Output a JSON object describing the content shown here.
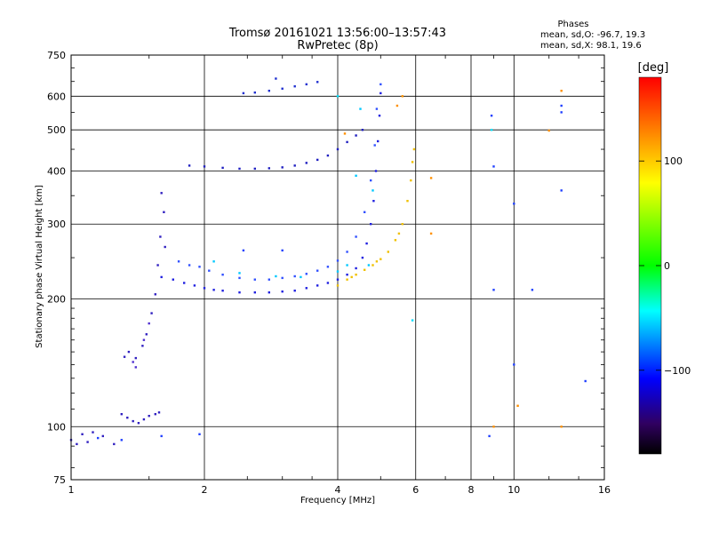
{
  "header": {
    "title": "Tromsø 20161021 13:56:00–13:57:43",
    "subtitle": "RwPretec (8p)"
  },
  "phase_box": {
    "heading": "Phases",
    "line_o": "mean, sd,O: -96.7, 19.3",
    "line_x": "mean, sd,X:  98.1, 19.6"
  },
  "colorbar": {
    "unit_label": "[deg]",
    "ticks": [
      {
        "value": 100,
        "label": "100"
      },
      {
        "value": 0,
        "label": "0"
      },
      {
        "value": -100,
        "label": "−100"
      }
    ],
    "range": [
      -180,
      180
    ],
    "colors": [
      "#ff0000",
      "#ff8000",
      "#ffff00",
      "#00ff00",
      "#00ffff",
      "#0000ff",
      "#300060",
      "#000000"
    ]
  },
  "chart_data": {
    "type": "scatter",
    "title": "Tromsø 20161021 13:56:00–13:57:43",
    "subtitle": "RwPretec (8p)",
    "xlabel": "Frequency [MHz]",
    "ylabel": "Stationary phase Virtual Height [km]",
    "x_scale": "log",
    "y_scale": "log",
    "xlim": [
      1,
      16
    ],
    "ylim": [
      75,
      750
    ],
    "x_ticks": [
      {
        "v": 1,
        "l": "1"
      },
      {
        "v": 2,
        "l": "2"
      },
      {
        "v": 4,
        "l": "4"
      },
      {
        "v": 6,
        "l": "6"
      },
      {
        "v": 8,
        "l": "8"
      },
      {
        "v": 10,
        "l": "10"
      },
      {
        "v": 16,
        "l": "16"
      }
    ],
    "y_ticks": [
      {
        "v": 75,
        "l": "75"
      },
      {
        "v": 100,
        "l": "100"
      },
      {
        "v": 200,
        "l": "200"
      },
      {
        "v": 300,
        "l": "300"
      },
      {
        "v": 400,
        "l": "400"
      },
      {
        "v": 500,
        "l": "500"
      },
      {
        "v": 600,
        "l": "600"
      },
      {
        "v": 750,
        "l": "750"
      }
    ],
    "grid": true,
    "series": [
      {
        "color": "#3020c0",
        "points": [
          [
            1.0,
            93
          ],
          [
            1.03,
            91
          ],
          [
            1.06,
            96
          ],
          [
            1.09,
            92
          ],
          [
            1.12,
            97
          ],
          [
            1.18,
            95
          ],
          [
            1.25,
            91
          ],
          [
            1.3,
            107
          ],
          [
            1.34,
            105
          ],
          [
            1.38,
            103
          ],
          [
            1.42,
            102
          ],
          [
            1.46,
            104
          ],
          [
            1.5,
            106
          ],
          [
            1.55,
            107
          ],
          [
            1.58,
            108
          ],
          [
            1.32,
            146
          ],
          [
            1.35,
            150
          ],
          [
            1.4,
            145
          ],
          [
            1.45,
            155
          ],
          [
            1.48,
            165
          ],
          [
            1.52,
            185
          ],
          [
            1.55,
            205
          ],
          [
            1.57,
            240
          ],
          [
            1.59,
            280
          ],
          [
            1.62,
            320
          ],
          [
            1.6,
            355
          ],
          [
            1.63,
            265
          ]
        ]
      },
      {
        "color": "#5030d0",
        "points": [
          [
            1.38,
            142
          ],
          [
            1.4,
            138
          ],
          [
            1.46,
            160
          ],
          [
            1.5,
            175
          ]
        ]
      },
      {
        "color": "#2020e0",
        "points": [
          [
            1.6,
            225
          ],
          [
            1.7,
            222
          ],
          [
            1.8,
            218
          ],
          [
            1.9,
            215
          ],
          [
            2.0,
            212
          ],
          [
            2.1,
            210
          ],
          [
            2.2,
            209
          ],
          [
            2.4,
            207
          ],
          [
            2.6,
            207
          ],
          [
            2.8,
            207
          ],
          [
            3.0,
            208
          ],
          [
            3.2,
            209
          ],
          [
            3.4,
            212
          ],
          [
            3.6,
            215
          ],
          [
            3.8,
            218
          ],
          [
            4.0,
            222
          ],
          [
            4.2,
            228
          ],
          [
            4.4,
            236
          ],
          [
            4.55,
            250
          ],
          [
            4.65,
            270
          ],
          [
            4.75,
            300
          ],
          [
            4.82,
            340
          ],
          [
            4.88,
            400
          ],
          [
            4.93,
            470
          ],
          [
            4.97,
            540
          ],
          [
            5.0,
            610
          ]
        ]
      },
      {
        "color": "#3050ff",
        "points": [
          [
            1.75,
            245
          ],
          [
            1.85,
            240
          ],
          [
            1.95,
            238
          ],
          [
            2.05,
            233
          ],
          [
            2.2,
            228
          ],
          [
            2.4,
            224
          ],
          [
            2.6,
            222
          ],
          [
            2.8,
            222
          ],
          [
            3.0,
            224
          ],
          [
            3.2,
            226
          ],
          [
            3.4,
            229
          ],
          [
            3.6,
            233
          ],
          [
            3.8,
            238
          ],
          [
            4.0,
            246
          ],
          [
            4.2,
            258
          ],
          [
            4.4,
            280
          ],
          [
            4.6,
            320
          ],
          [
            4.75,
            380
          ],
          [
            4.85,
            460
          ],
          [
            4.9,
            560
          ],
          [
            5.0,
            640
          ]
        ]
      },
      {
        "color": "#00c8ff",
        "points": [
          [
            2.1,
            245
          ],
          [
            2.4,
            230
          ],
          [
            2.9,
            226
          ],
          [
            3.3,
            225
          ],
          [
            4.0,
            232
          ],
          [
            4.2,
            240
          ],
          [
            4.4,
            390
          ],
          [
            4.5,
            560
          ],
          [
            4.7,
            240
          ],
          [
            4.8,
            360
          ]
        ]
      },
      {
        "color": "#2020c0",
        "points": [
          [
            1.85,
            412
          ],
          [
            2.0,
            410
          ],
          [
            2.2,
            407
          ],
          [
            2.4,
            405
          ],
          [
            2.6,
            405
          ],
          [
            2.8,
            406
          ],
          [
            3.0,
            408
          ],
          [
            3.2,
            412
          ],
          [
            3.4,
            418
          ],
          [
            3.6,
            425
          ],
          [
            3.8,
            435
          ],
          [
            4.0,
            450
          ],
          [
            4.2,
            468
          ],
          [
            4.4,
            485
          ],
          [
            4.55,
            500
          ]
        ]
      },
      {
        "color": "#2030d0",
        "points": [
          [
            2.45,
            610
          ],
          [
            2.6,
            612
          ],
          [
            2.8,
            618
          ],
          [
            3.0,
            625
          ],
          [
            3.2,
            633
          ],
          [
            3.4,
            640
          ],
          [
            3.6,
            648
          ],
          [
            2.9,
            660
          ]
        ]
      },
      {
        "color": "#f0c000",
        "points": [
          [
            4.0,
            215
          ],
          [
            4.2,
            222
          ],
          [
            4.4,
            228
          ],
          [
            4.6,
            234
          ],
          [
            4.8,
            240
          ],
          [
            5.0,
            248
          ],
          [
            5.2,
            258
          ],
          [
            5.4,
            275
          ],
          [
            5.6,
            300
          ],
          [
            5.75,
            340
          ],
          [
            5.85,
            380
          ],
          [
            5.9,
            420
          ],
          [
            5.95,
            450
          ],
          [
            4.3,
            225
          ],
          [
            4.9,
            245
          ],
          [
            5.5,
            285
          ]
        ]
      },
      {
        "color": "#ff9000",
        "points": [
          [
            5.45,
            570
          ],
          [
            5.6,
            600
          ],
          [
            6.5,
            385
          ],
          [
            6.5,
            285
          ],
          [
            4.15,
            490
          ],
          [
            12.0,
            498
          ],
          [
            12.8,
            618
          ],
          [
            12.8,
            100
          ],
          [
            10.2,
            112
          ],
          [
            9.0,
            100
          ]
        ]
      },
      {
        "color": "#2040ff",
        "points": [
          [
            8.8,
            95
          ],
          [
            9.0,
            210
          ],
          [
            10.0,
            335
          ],
          [
            10.0,
            140
          ],
          [
            12.8,
            570
          ],
          [
            12.8,
            550
          ],
          [
            12.8,
            360
          ],
          [
            11.0,
            210
          ],
          [
            8.9,
            540
          ],
          [
            9.0,
            410
          ],
          [
            14.5,
            128
          ],
          [
            1.95,
            96
          ],
          [
            1.6,
            95
          ],
          [
            1.3,
            93
          ],
          [
            1.15,
            94
          ],
          [
            3.0,
            260
          ],
          [
            2.45,
            260
          ]
        ]
      },
      {
        "color": "#00e0ff",
        "points": [
          [
            5.9,
            178
          ],
          [
            8.9,
            500
          ],
          [
            4.0,
            600
          ]
        ]
      }
    ]
  }
}
